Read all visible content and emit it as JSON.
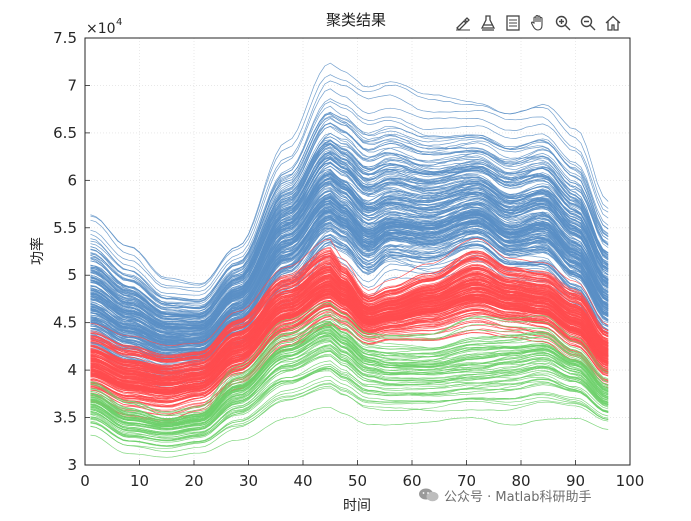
{
  "toolbar": {
    "items": [
      {
        "name": "brush-icon"
      },
      {
        "name": "data-tips-icon"
      },
      {
        "name": "legend-icon"
      },
      {
        "name": "pan-icon"
      },
      {
        "name": "zoom-in-icon"
      },
      {
        "name": "zoom-out-icon"
      },
      {
        "name": "home-icon"
      }
    ]
  },
  "watermark": {
    "text": "公众号 · Matlab科研助手"
  },
  "chart_data": {
    "type": "line",
    "title": "聚类结果",
    "xlabel": "时间",
    "ylabel": "功率",
    "exponent_label": "×10",
    "exponent_power": "4",
    "xlim": [
      0,
      100
    ],
    "ylim": [
      30000,
      75000
    ],
    "xticks": [
      0,
      10,
      20,
      30,
      40,
      50,
      60,
      70,
      80,
      90,
      100
    ],
    "ytick_values": [
      30000,
      35000,
      40000,
      45000,
      50000,
      55000,
      60000,
      65000,
      70000,
      75000
    ],
    "ytick_labels": [
      "3",
      "3.5",
      "4",
      "4.5",
      "5",
      "5.5",
      "6",
      "6.5",
      "7",
      "7.5"
    ],
    "grid": true,
    "x": [
      1,
      8,
      15,
      21,
      28,
      37,
      45,
      47,
      52,
      56,
      63,
      72,
      78,
      84,
      90,
      96
    ],
    "clusters": [
      {
        "color": "#5b8fc5",
        "band_min": [
          40000,
          38500,
          37500,
          38000,
          40500,
          46000,
          51000,
          50500,
          48000,
          50000,
          49500,
          51000,
          49000,
          48500,
          46000,
          42000
        ],
        "band_max": [
          57000,
          53500,
          50000,
          49500,
          53500,
          64000,
          72500,
          72000,
          70500,
          71000,
          69500,
          69000,
          68000,
          68500,
          65500,
          58000
        ],
        "mean": [
          47000,
          45000,
          43500,
          43500,
          47000,
          54000,
          58500,
          57500,
          55000,
          56000,
          55500,
          57000,
          55000,
          56000,
          53000,
          48000
        ],
        "count": 220
      },
      {
        "color": "#ff4c4f",
        "band_min": [
          36500,
          35000,
          34500,
          35500,
          38000,
          42000,
          44500,
          44000,
          42500,
          43000,
          43000,
          44000,
          43500,
          43000,
          41000,
          38000
        ],
        "band_max": [
          45000,
          43500,
          42500,
          43000,
          46500,
          51000,
          54000,
          52000,
          48500,
          49500,
          51000,
          54000,
          52000,
          51500,
          49500,
          45000
        ],
        "mean": [
          40500,
          39000,
          38500,
          39000,
          42000,
          46500,
          49000,
          48000,
          45500,
          46000,
          47000,
          48500,
          47500,
          47000,
          45000,
          41500
        ],
        "count": 200
      },
      {
        "color": "#6cd06a",
        "band_min": [
          33000,
          31000,
          30500,
          31000,
          32500,
          34500,
          35500,
          35000,
          34000,
          34000,
          34000,
          34500,
          34000,
          34500,
          34500,
          33500
        ],
        "band_max": [
          39500,
          37500,
          36000,
          36500,
          41000,
          46000,
          48000,
          47000,
          45000,
          45000,
          45000,
          47000,
          46500,
          46500,
          44000,
          40500
        ],
        "mean": [
          36500,
          34500,
          34000,
          34500,
          37500,
          41500,
          43500,
          42500,
          40500,
          40000,
          40000,
          40500,
          41000,
          41500,
          40000,
          37000
        ],
        "count": 70
      }
    ]
  }
}
